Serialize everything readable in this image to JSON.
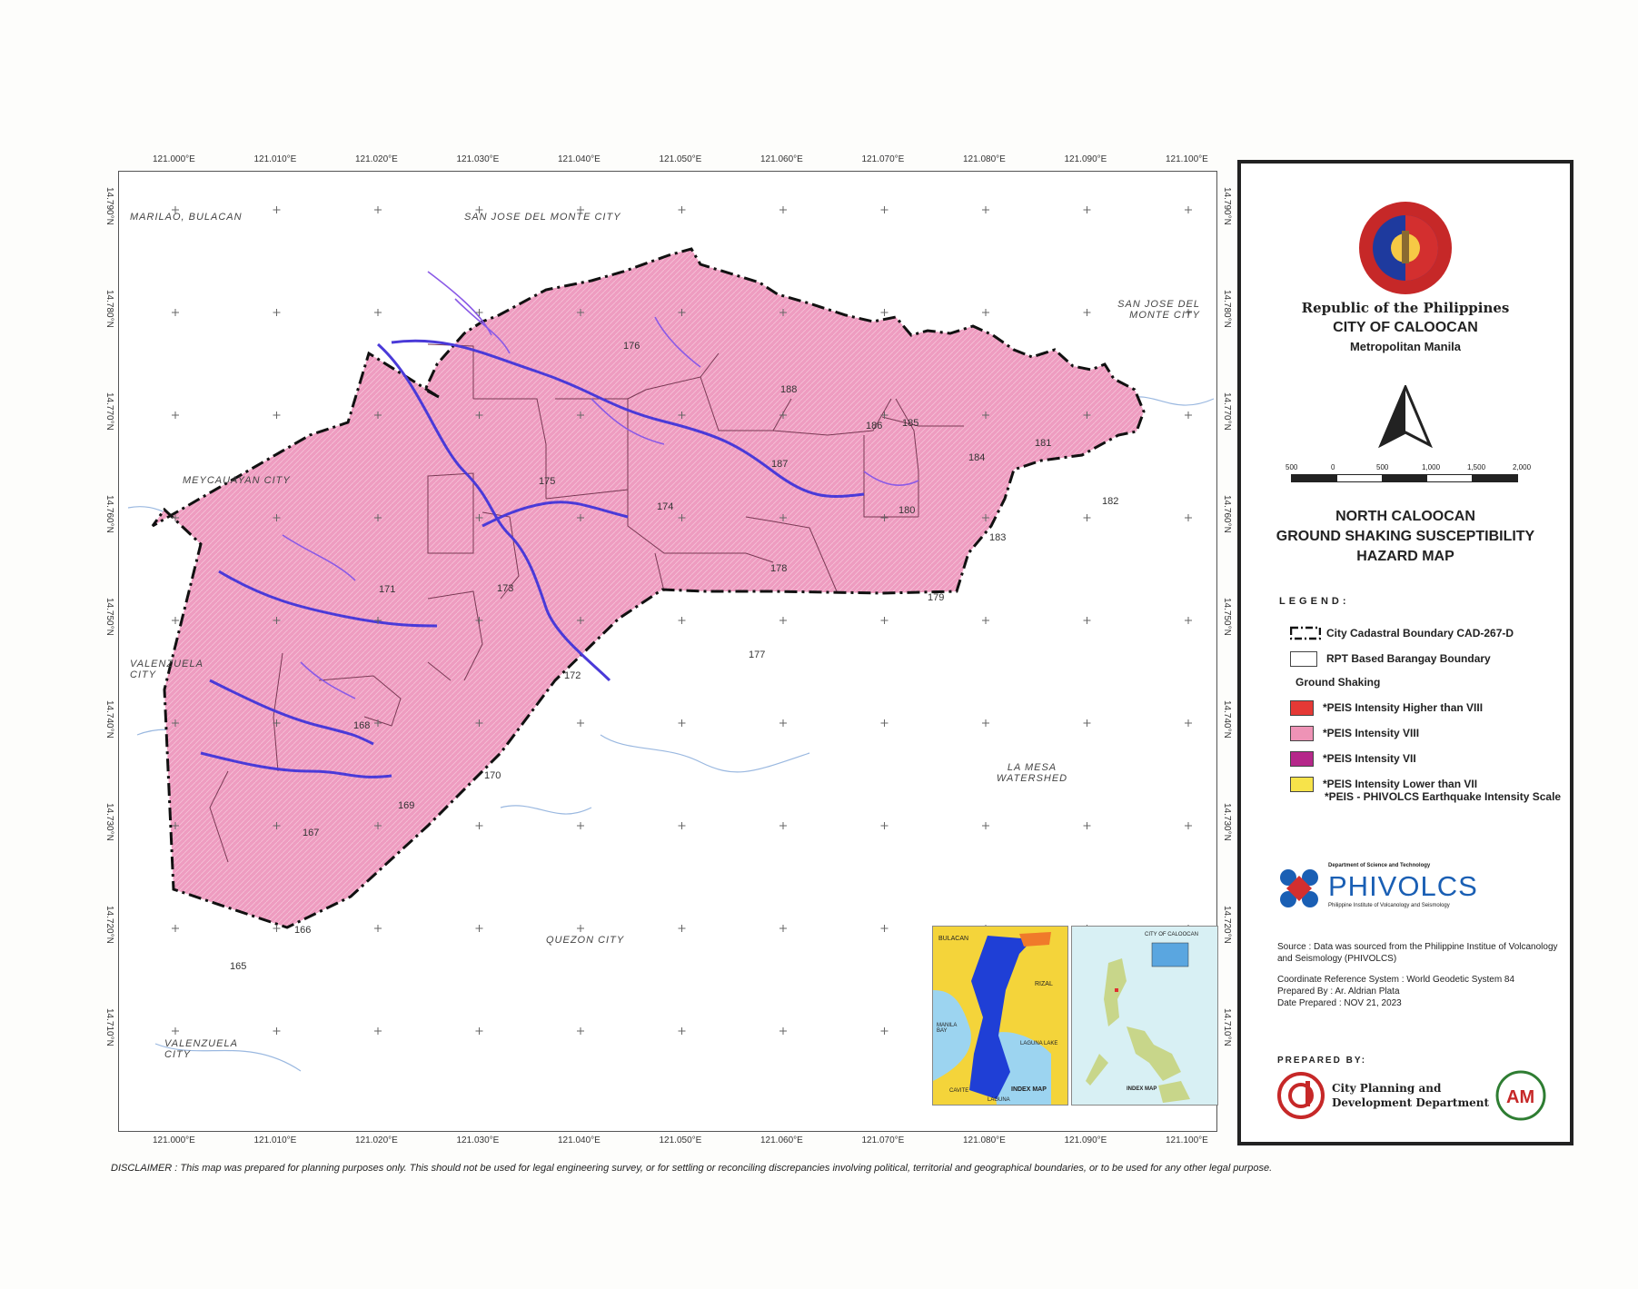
{
  "ticks": {
    "x": [
      "121.000°E",
      "121.010°E",
      "121.020°E",
      "121.030°E",
      "121.040°E",
      "121.050°E",
      "121.060°E",
      "121.070°E",
      "121.080°E",
      "121.090°E",
      "121.100°E"
    ],
    "y": [
      "14.790°N",
      "14.780°N",
      "14.770°N",
      "14.760°N",
      "14.750°N",
      "14.740°N",
      "14.730°N",
      "14.720°N",
      "14.710°N"
    ]
  },
  "places": {
    "marilao": "MARILAO, BULACAN",
    "sjdm_top": "SAN JOSE DEL MONTE CITY",
    "sjdm_right": "SAN JOSE DEL MONTE CITY",
    "meycauayan": "MEYCAUAYAN CITY",
    "valenzuela_1": "VALENZUELA CITY",
    "valenzuela_2": "VALENZUELA CITY",
    "la_mesa": "LA MESA WATERSHED",
    "quezon": "QUEZON CITY"
  },
  "barangays": [
    "176",
    "188",
    "186",
    "185",
    "184",
    "181",
    "187",
    "175",
    "174",
    "180",
    "182",
    "183",
    "173",
    "171",
    "178",
    "179",
    "177",
    "172",
    "168",
    "170",
    "169",
    "167",
    "166",
    "165"
  ],
  "insets": {
    "index_map_label": "INDEX MAP",
    "index_map_label_2": "INDEX MAP",
    "bulacan": "BULACAN",
    "rizal": "RIZAL",
    "manila_bay": "MANILA BAY",
    "laguna_lake": "LAGUNA LAKE",
    "cavite": "CAVITE",
    "laguna": "LAGUNA",
    "city_of_caloocan": "CITY OF CALOOCAN"
  },
  "header": {
    "republic": "Republic of the Philippines",
    "city": "CITY OF CALOOCAN",
    "region": "Metropolitan Manila",
    "seal_text": "PAMAHALAANG LUNGSOD NG CALOOCAN"
  },
  "scale_bar": {
    "labels": [
      "500",
      "0",
      "500",
      "1,000",
      "1,500",
      "2,000"
    ]
  },
  "title": [
    "NORTH CALOOCAN",
    "GROUND SHAKING SUSCEPTIBILITY",
    "HAZARD MAP"
  ],
  "legend": {
    "heading": "LEGEND:",
    "boundary_city": "City Cadastral Boundary CAD-267-D",
    "boundary_brgy": "RPT Based Barangay Boundary",
    "group": "Ground Shaking",
    "items": [
      {
        "label": "*PEIS Intensity Higher than VIII",
        "color": "#e53935"
      },
      {
        "label": "*PEIS Intensity VIII",
        "color": "#ee93b6"
      },
      {
        "label": "*PEIS Intensity VII",
        "color": "#b5288a"
      },
      {
        "label": "*PEIS Intensity Lower than VII",
        "color": "#f7e34a"
      }
    ],
    "note": "*PEIS - PHIVOLCS Earthquake Intensity Scale"
  },
  "phivolcs": {
    "dept": "Department of Science and Technology",
    "name": "PHIVOLCS",
    "sub": "Philippine Institute of Volcanology and Seismology"
  },
  "meta": {
    "source": "Source : Data was sourced from the Philippine Institue of Volcanology and Seismology (PHIVOLCS)",
    "crs": "Coordinate Reference System : World Geodetic System 84",
    "prepared_by": "Prepared By : Ar. Aldrian Plata",
    "date": "Date Prepared : NOV 21, 2023"
  },
  "prepared": {
    "heading": "PREPARED BY:",
    "dept_line1": "City Planning and",
    "dept_line2": "Development Department",
    "logo_text": "AM"
  },
  "disclaimer": "DISCLAIMER : This map was prepared for planning purposes only. This should not be used for legal engineering survey, or for settling or reconciling discrepancies involving political, territorial and geographical boundaries, or to be used for any other legal purpose."
}
